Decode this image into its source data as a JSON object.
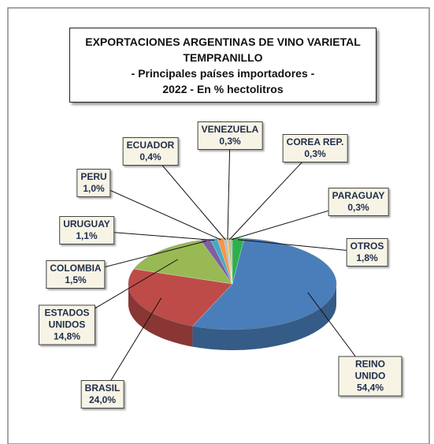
{
  "chart_data": {
    "type": "pie",
    "title": [
      "EXPORTACIONES ARGENTINAS DE VINO VARIETAL",
      "TEMPRANILLO",
      "- Principales países importadores -",
      "2022 - En % hectolitros"
    ],
    "categories": [
      "REINO UNIDO",
      "BRASIL",
      "ESTADOS UNIDOS",
      "COLOMBIA",
      "URUGUAY",
      "PERU",
      "ECUADOR",
      "VENEZUELA",
      "COREA REP.",
      "PARAGUAY",
      "OTROS"
    ],
    "values": [
      54.4,
      24.0,
      14.8,
      1.5,
      1.1,
      1.0,
      0.4,
      0.3,
      0.3,
      0.3,
      1.8
    ],
    "value_labels": [
      "54,4%",
      "24,0%",
      "14,8%",
      "1,5%",
      "1,1%",
      "1,0%",
      "0,4%",
      "0,3%",
      "0,3%",
      "0,3%",
      "1,8%"
    ],
    "colors": [
      "#4a7ebb",
      "#be4b48",
      "#98b954",
      "#7d60a0",
      "#46aac5",
      "#f79646",
      "#a9bcd9",
      "#e8c46a",
      "#9fbf6a",
      "#c9a0d0",
      "#2cb04a"
    ]
  }
}
